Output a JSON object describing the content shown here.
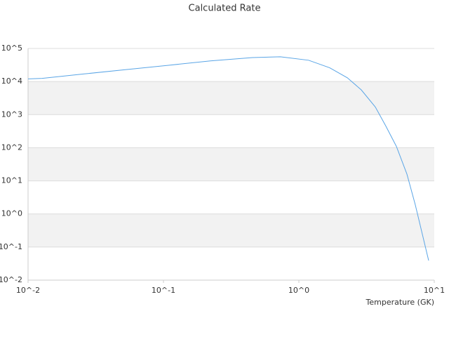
{
  "chart_data": {
    "type": "line",
    "title": "Calculated Rate",
    "x_label": "Temperature (GK)",
    "x": [
      0.01,
      0.0127,
      0.026,
      0.053,
      0.109,
      0.222,
      0.455,
      0.73,
      1.18,
      1.69,
      2.28,
      2.89,
      3.67,
      4.39,
      5.25,
      6.28,
      7.24,
      9.09
    ],
    "series": [
      {
        "name": "Rate",
        "color": "#5aa5e6",
        "values": [
          12000,
          12500,
          17000,
          23000,
          31000,
          42000,
          53000,
          56000,
          44000,
          26000,
          13000,
          5600,
          1700,
          450,
          110,
          16,
          1.9,
          0.039
        ]
      }
    ],
    "xlim": [
      0.01,
      10
    ],
    "ylim": [
      0.01,
      100000
    ],
    "log_x": true,
    "log_y": true,
    "grid": true,
    "xticks": [
      {
        "value": 0.01,
        "label": "10^-2"
      },
      {
        "value": 0.1,
        "label": "10^-1"
      },
      {
        "value": 1,
        "label": "10^0"
      },
      {
        "value": 10,
        "label": "10^1"
      }
    ],
    "yticks": [
      {
        "value": 0.01,
        "label": "10^-2"
      },
      {
        "value": 0.1,
        "label": "10^-1"
      },
      {
        "value": 1,
        "label": "10^0"
      },
      {
        "value": 10,
        "label": "10^1"
      },
      {
        "value": 100,
        "label": "10^2"
      },
      {
        "value": 1000,
        "label": "10^3"
      },
      {
        "value": 10000,
        "label": "10^4"
      },
      {
        "value": 100000,
        "label": "10^5"
      }
    ]
  }
}
